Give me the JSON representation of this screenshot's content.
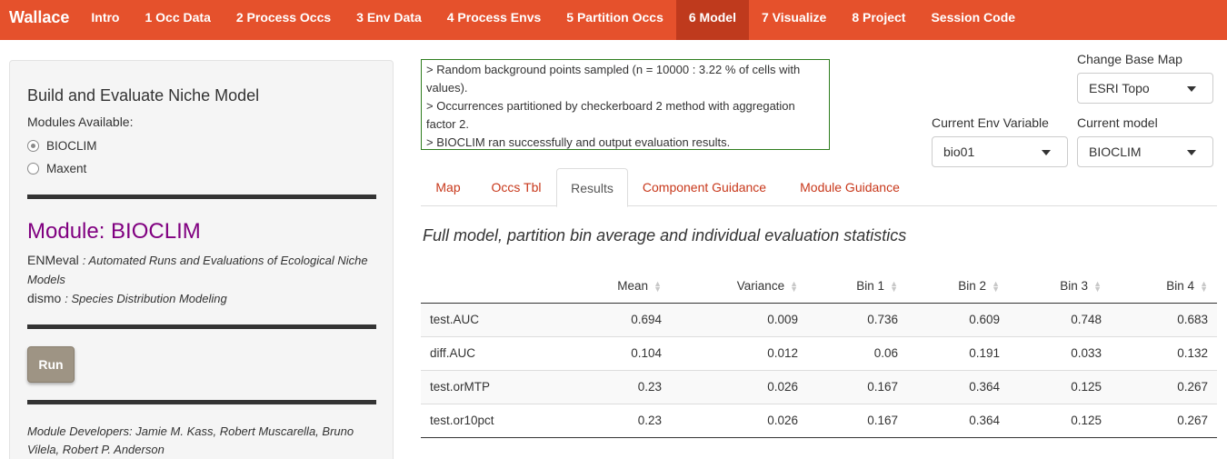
{
  "navbar": {
    "brand": "Wallace",
    "items": [
      {
        "label": "Intro"
      },
      {
        "label": "1 Occ Data"
      },
      {
        "label": "2 Process Occs"
      },
      {
        "label": "3 Env Data"
      },
      {
        "label": "4 Process Envs"
      },
      {
        "label": "5 Partition Occs"
      },
      {
        "label": "6 Model",
        "active": true
      },
      {
        "label": "7 Visualize"
      },
      {
        "label": "8 Project"
      },
      {
        "label": "Session Code"
      }
    ],
    "color": "#e5512c",
    "active_color": "#bf3a1d"
  },
  "left_panel": {
    "title": "Build and Evaluate Niche Model",
    "modules_label": "Modules Available:",
    "modules": [
      {
        "label": "BIOCLIM",
        "checked": true
      },
      {
        "label": "Maxent",
        "checked": false
      }
    ],
    "module_title": "Module: BIOCLIM",
    "packages": [
      {
        "name": "ENMeval",
        "desc": ": Automated Runs and Evaluations of Ecological Niche Models"
      },
      {
        "name": "dismo",
        "desc": ": Species Distribution Modeling"
      }
    ],
    "run_label": "Run",
    "developers": "Module Developers: Jamie M. Kass, Robert Muscarella, Bruno Vilela, Robert P. Anderson"
  },
  "log": {
    "lines": [
      "> Random background points sampled (n = 10000 : 3.22 % of cells with values).",
      "> Occurrences partitioned by checkerboard 2 method with aggregation factor 2.",
      "> BIOCLIM ran successfully and output evaluation results."
    ]
  },
  "controls": {
    "base_map_label": "Change Base Map",
    "base_map_value": "ESRI Topo",
    "env_var_label": "Current Env Variable",
    "env_var_value": "bio01",
    "model_label": "Current model",
    "model_value": "BIOCLIM"
  },
  "tabs": [
    {
      "label": "Map"
    },
    {
      "label": "Occs Tbl"
    },
    {
      "label": "Results",
      "active": true
    },
    {
      "label": "Component Guidance"
    },
    {
      "label": "Module Guidance"
    }
  ],
  "results": {
    "title": "Full model, partition bin average and individual evaluation statistics",
    "columns": [
      "",
      "Mean",
      "Variance",
      "Bin 1",
      "Bin 2",
      "Bin 3",
      "Bin 4"
    ],
    "rows": [
      [
        "test.AUC",
        "0.694",
        "0.009",
        "0.736",
        "0.609",
        "0.748",
        "0.683"
      ],
      [
        "diff.AUC",
        "0.104",
        "0.012",
        "0.06",
        "0.191",
        "0.033",
        "0.132"
      ],
      [
        "test.orMTP",
        "0.23",
        "0.026",
        "0.167",
        "0.364",
        "0.125",
        "0.267"
      ],
      [
        "test.or10pct",
        "0.23",
        "0.026",
        "0.167",
        "0.364",
        "0.125",
        "0.267"
      ]
    ]
  }
}
